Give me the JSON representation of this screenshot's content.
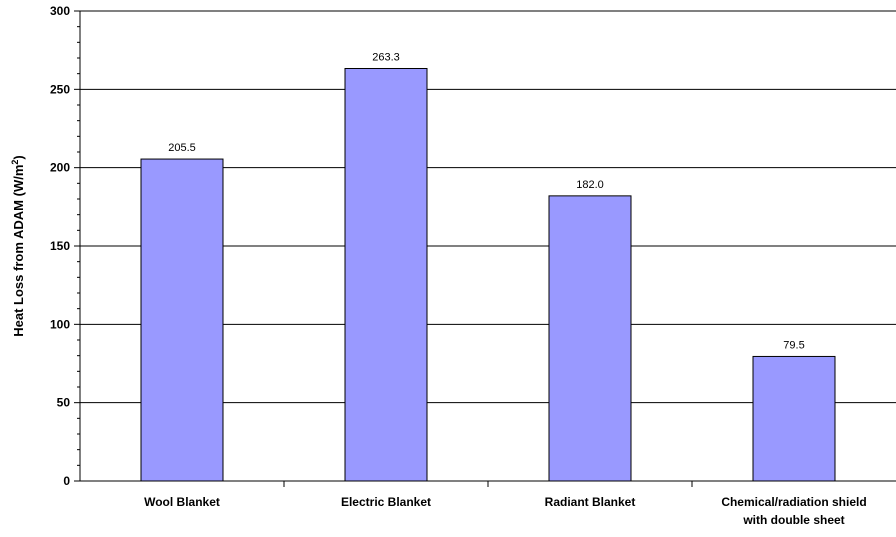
{
  "chart_data": {
    "type": "bar",
    "categories": [
      [
        "Wool Blanket"
      ],
      [
        "Electric Blanket"
      ],
      [
        "Radiant Blanket"
      ],
      [
        "Chemical/radiation shield",
        "with double sheet"
      ]
    ],
    "values": [
      205.5,
      263.3,
      182.0,
      79.5
    ],
    "value_labels": [
      "205.5",
      "263.3",
      "182.0",
      "79.5"
    ],
    "ylabel": "Heat Loss from ADAM (W/m",
    "ylabel_superscript": "2",
    "ylabel_suffix": ")",
    "ylim": [
      0,
      300
    ],
    "yticks": [
      0,
      50,
      100,
      150,
      200,
      250,
      300
    ],
    "grid": true,
    "legend": false,
    "bar_color": "#9999ff"
  }
}
